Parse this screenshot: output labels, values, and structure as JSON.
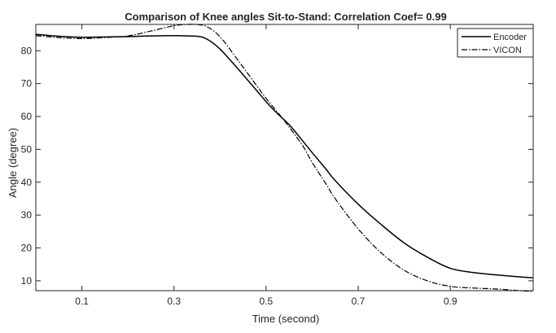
{
  "chart_data": {
    "type": "line",
    "title": "Comparison of Knee angles Sit-to-Stand: Correlation Coef= 0.99",
    "xlabel": "Time (second)",
    "ylabel": "Angle (degree)",
    "xlim": [
      0,
      1.08
    ],
    "ylim": [
      7,
      88
    ],
    "xticks": [
      0.1,
      0.3,
      0.5,
      0.7,
      0.9
    ],
    "xtick_labels": [
      "0.1",
      "0.3",
      "0.5",
      "0.7",
      "0.9"
    ],
    "yticks": [
      10,
      20,
      30,
      40,
      50,
      60,
      70,
      80
    ],
    "ytick_labels": [
      "10",
      "20",
      "30",
      "40",
      "50",
      "60",
      "70",
      "80"
    ],
    "grid": false,
    "legend_position": "top-right",
    "series": [
      {
        "name": "Encoder",
        "style": "solid",
        "color": "#000000",
        "x": [
          0.0,
          0.05,
          0.1,
          0.15,
          0.2,
          0.25,
          0.3,
          0.33,
          0.36,
          0.38,
          0.4,
          0.42,
          0.45,
          0.48,
          0.5,
          0.52,
          0.55,
          0.57,
          0.6,
          0.63,
          0.65,
          0.7,
          0.75,
          0.8,
          0.85,
          0.9,
          0.95,
          1.0,
          1.05,
          1.08
        ],
        "y": [
          85.0,
          84.4,
          84.1,
          84.2,
          84.3,
          84.5,
          84.6,
          84.5,
          84.2,
          82.8,
          80.5,
          77.5,
          72.7,
          67.8,
          64.5,
          61.5,
          57.5,
          54.2,
          49.0,
          44.0,
          40.5,
          33.3,
          27.1,
          21.5,
          17.2,
          13.8,
          12.5,
          11.8,
          11.2,
          10.9
        ]
      },
      {
        "name": "VICON",
        "style": "dashdot",
        "color": "#000000",
        "x": [
          0.0,
          0.05,
          0.1,
          0.15,
          0.2,
          0.25,
          0.3,
          0.33,
          0.35,
          0.37,
          0.39,
          0.41,
          0.43,
          0.45,
          0.48,
          0.5,
          0.53,
          0.55,
          0.58,
          0.6,
          0.63,
          0.65,
          0.7,
          0.75,
          0.8,
          0.85,
          0.9,
          0.95,
          1.0,
          1.05,
          1.08
        ],
        "y": [
          84.6,
          84.0,
          83.7,
          84.0,
          84.5,
          86.0,
          87.6,
          88.0,
          88.0,
          87.4,
          85.6,
          82.6,
          78.8,
          75.0,
          69.3,
          65.5,
          60.4,
          56.8,
          51.0,
          46.0,
          39.5,
          35.0,
          25.8,
          18.5,
          13.2,
          10.0,
          8.3,
          7.8,
          7.5,
          7.0,
          6.8
        ]
      }
    ]
  }
}
